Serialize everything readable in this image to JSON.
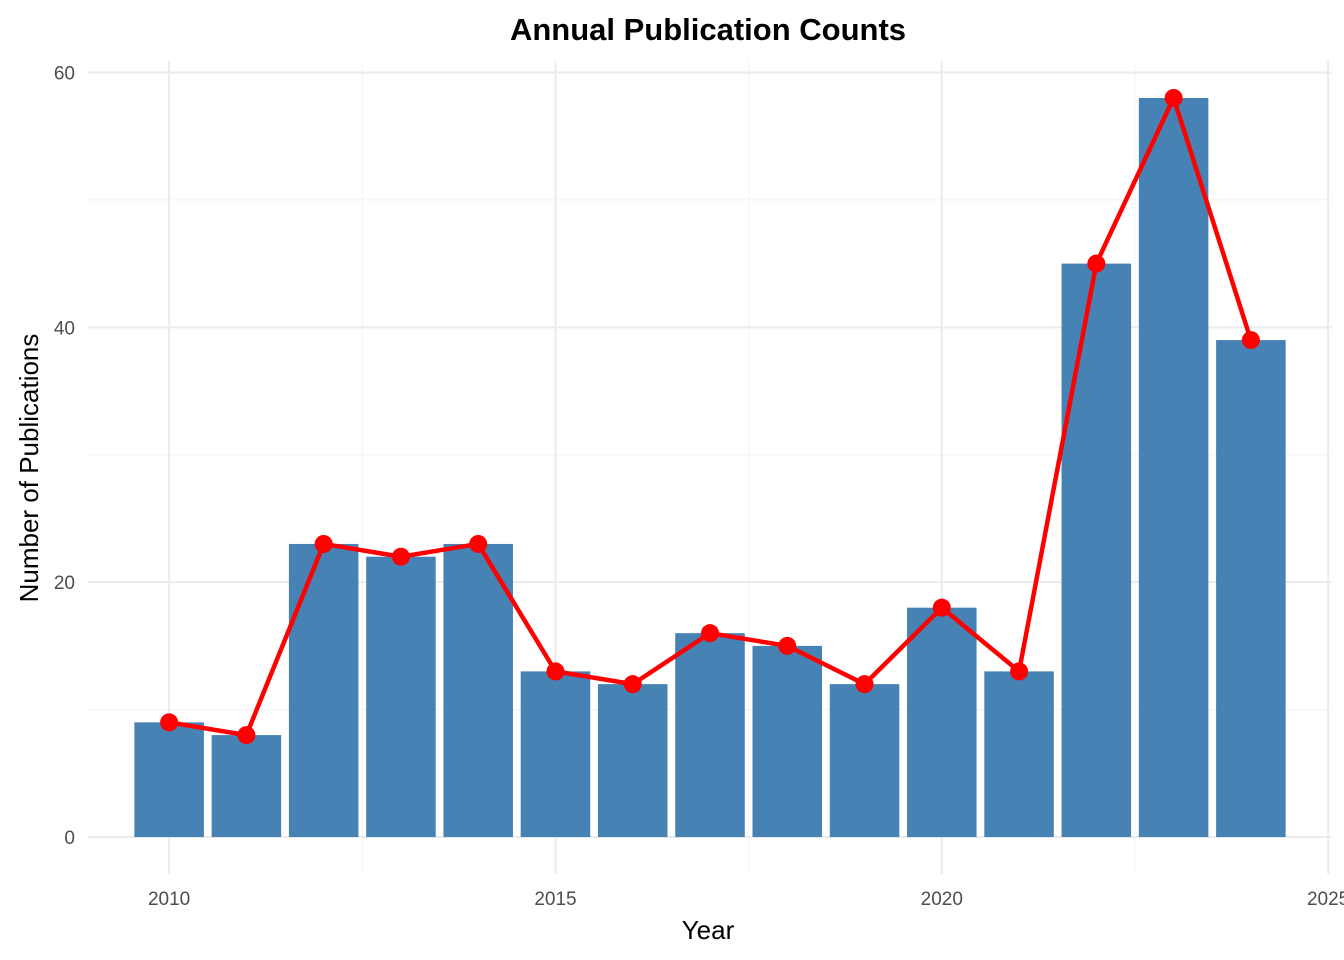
{
  "chart_data": {
    "type": "bar",
    "title": "Annual Publication Counts",
    "xlabel": "Year",
    "ylabel": "Number of Publications",
    "x": [
      2010,
      2011,
      2012,
      2013,
      2014,
      2015,
      2016,
      2017,
      2018,
      2019,
      2020,
      2021,
      2022,
      2023,
      2024
    ],
    "values": [
      9,
      8,
      23,
      22,
      23,
      13,
      12,
      16,
      15,
      12,
      18,
      13,
      45,
      58,
      39
    ],
    "overlay": {
      "type": "line",
      "markers": true,
      "values": [
        9,
        8,
        23,
        22,
        23,
        13,
        12,
        16,
        15,
        12,
        18,
        13,
        45,
        58,
        39
      ]
    },
    "xlim": [
      2008.95,
      2025.05
    ],
    "ylim": [
      -2.9,
      60.9
    ],
    "x_ticks": [
      2010,
      2015,
      2020,
      2025
    ],
    "x_tick_labels": [
      "2010",
      "2015",
      "2020",
      "2025"
    ],
    "y_ticks": [
      0,
      20,
      40,
      60
    ],
    "y_tick_labels": [
      "0",
      "20",
      "40",
      "60"
    ],
    "grid": true,
    "legend": "none",
    "colors": {
      "bar": "#4682B4",
      "line": "#FF0000",
      "grid_major": "#EBEBEB",
      "grid_minor": "#F5F5F5"
    }
  }
}
